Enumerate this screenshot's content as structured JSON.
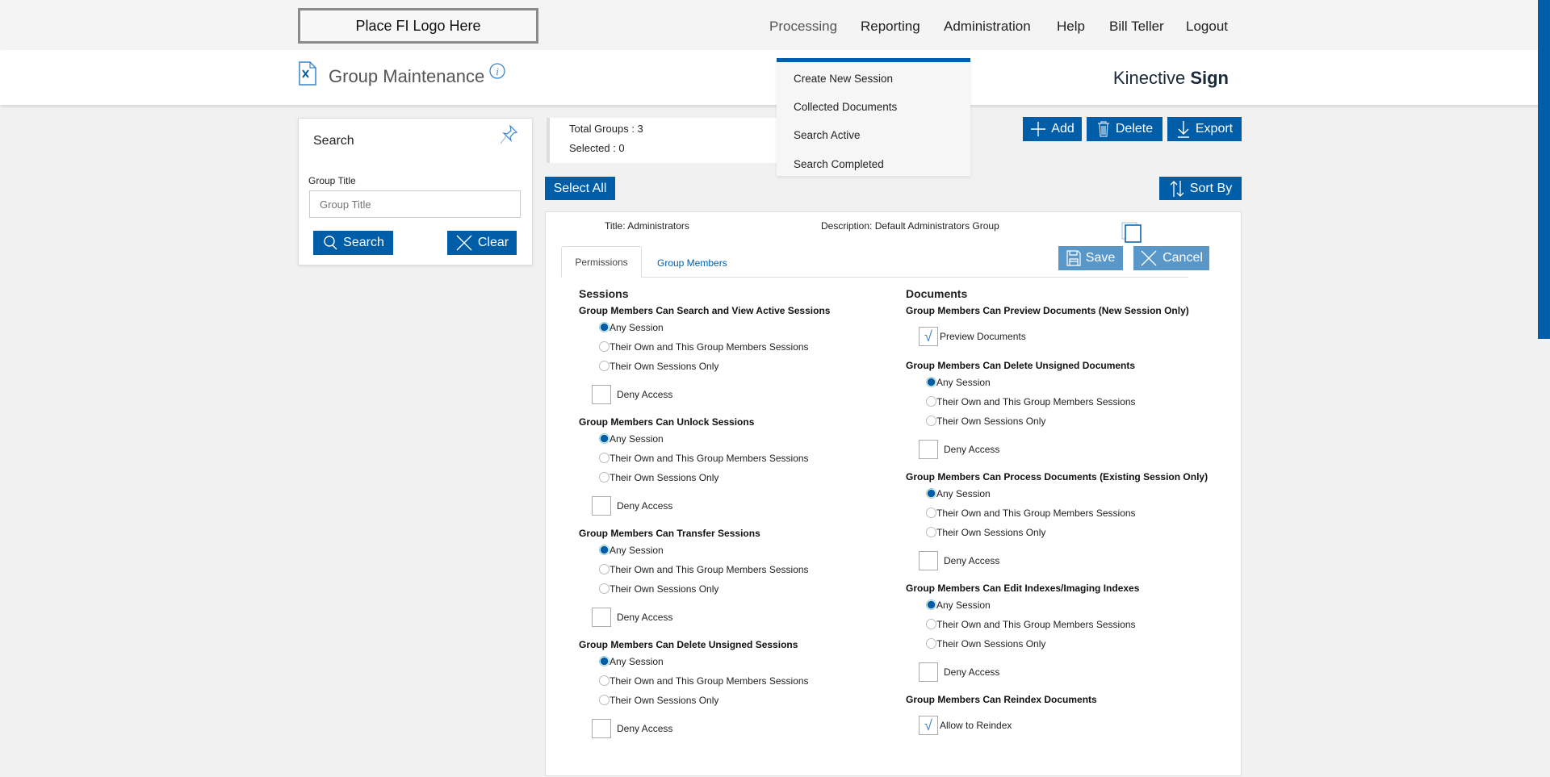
{
  "header": {
    "logo": "Place FI Logo Here",
    "nav": [
      "Processing",
      "Reporting",
      "Administration",
      "Help",
      "Bill Teller",
      "Logout"
    ],
    "page_title": "Group Maintenance",
    "brand_regular": "Kinective",
    "brand_bold": "Sign"
  },
  "dropdown": {
    "items": [
      "Create New Session",
      "Collected Documents",
      "Search Active",
      "Search Completed"
    ]
  },
  "search": {
    "title": "Search",
    "field_label": "Group Title",
    "placeholder": "Group Title",
    "search_label": "Search",
    "clear_label": "Clear"
  },
  "stats": {
    "total": "Total Groups : 3",
    "selected": "Selected : 0"
  },
  "toolbar": {
    "add": "Add",
    "delete": "Delete",
    "export": "Export",
    "select_all": "Select All",
    "sort_by": "Sort By"
  },
  "group": {
    "title": "Title:  Administrators",
    "description": "Description: Default Administrators Group",
    "save": "Save",
    "cancel": "Cancel",
    "tabs": [
      "Permissions",
      "Group Members"
    ],
    "active_tab": 0
  },
  "colors": {
    "primary": "#005ea8",
    "primary_light": "#5a97c9"
  },
  "permissions": {
    "sessions": {
      "heading": "Sessions",
      "groups": [
        {
          "type": "radio",
          "title": "Group Members Can Search and View Active Sessions",
          "options": [
            "Any Session",
            "Their Own and This Group Members Sessions",
            "Their Own Sessions Only"
          ],
          "selected": 0,
          "deny_label": "Deny Access",
          "deny_checked": false
        },
        {
          "type": "radio",
          "title": "Group Members Can Unlock Sessions",
          "options": [
            "Any Session",
            "Their Own and This Group Members Sessions",
            "Their Own Sessions Only"
          ],
          "selected": 0,
          "deny_label": "Deny Access",
          "deny_checked": false
        },
        {
          "type": "radio",
          "title": "Group Members Can Transfer Sessions",
          "options": [
            "Any Session",
            "Their Own and This Group Members Sessions",
            "Their Own Sessions Only"
          ],
          "selected": 0,
          "deny_label": "Deny Access",
          "deny_checked": false
        },
        {
          "type": "radio",
          "title": "Group Members Can Delete Unsigned Sessions",
          "options": [
            "Any Session",
            "Their Own and This Group Members Sessions",
            "Their Own Sessions Only"
          ],
          "selected": 0,
          "deny_label": "Deny Access",
          "deny_checked": false
        }
      ]
    },
    "documents": {
      "heading": "Documents",
      "groups": [
        {
          "type": "checkbox",
          "title": "Group Members Can Preview Documents (New Session Only)",
          "label": "Preview Documents",
          "checked": true
        },
        {
          "type": "radio",
          "title": "Group Members Can Delete Unsigned Documents",
          "options": [
            "Any Session",
            "Their Own and This Group Members Sessions",
            "Their Own Sessions Only"
          ],
          "selected": 0,
          "deny_label": "Deny Access",
          "deny_checked": false
        },
        {
          "type": "radio",
          "title": "Group Members Can Process Documents (Existing Session Only)",
          "options": [
            "Any Session",
            "Their Own and This Group Members Sessions",
            "Their Own Sessions Only"
          ],
          "selected": 0,
          "deny_label": "Deny Access",
          "deny_checked": false
        },
        {
          "type": "radio",
          "title": "Group Members Can Edit Indexes/Imaging Indexes",
          "options": [
            "Any Session",
            "Their Own and This Group Members Sessions",
            "Their Own Sessions Only"
          ],
          "selected": 0,
          "deny_label": "Deny Access",
          "deny_checked": false
        },
        {
          "type": "checkbox",
          "title": "Group Members Can Reindex Documents",
          "label": "Allow to Reindex",
          "checked": true
        }
      ]
    }
  }
}
